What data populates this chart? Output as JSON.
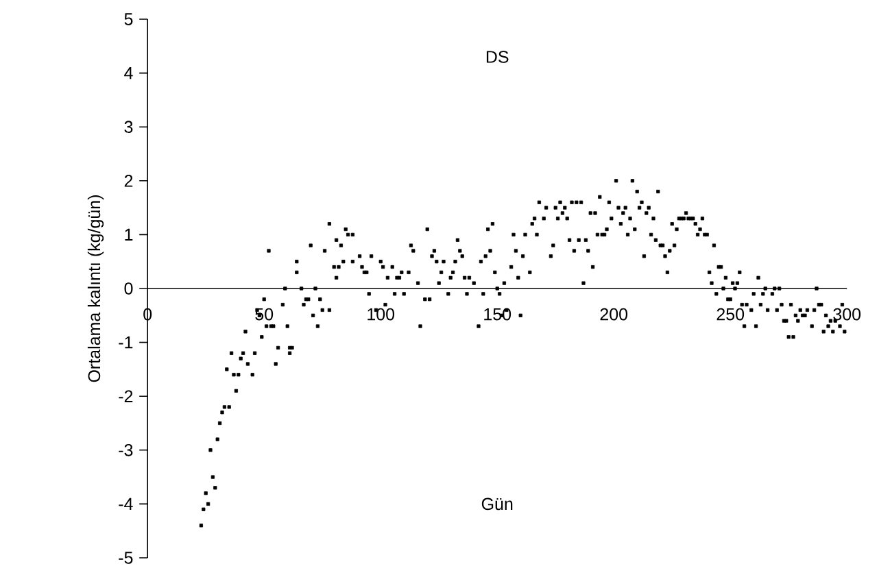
{
  "chart_data": {
    "type": "scatter",
    "title": "DS",
    "xlabel": "Gün",
    "ylabel": "Ortalama kalıntı (kg/gün)",
    "color": "#000000",
    "marker": "square",
    "xlim": [
      0,
      300
    ],
    "ylim": [
      -5,
      5
    ],
    "xticks": [
      0,
      50,
      100,
      150,
      200,
      250,
      300
    ],
    "yticks": [
      -5,
      -4,
      -3,
      -2,
      -1,
      0,
      1,
      2,
      3,
      4,
      5
    ],
    "x": [
      23,
      24,
      25,
      26,
      27,
      28,
      29,
      30,
      31,
      32,
      33,
      35,
      34,
      36,
      37,
      39,
      38,
      40,
      41,
      42,
      43,
      45,
      46,
      47,
      48,
      50,
      49,
      51,
      52,
      53,
      54,
      55,
      56,
      58,
      59,
      60,
      61,
      61,
      62,
      64,
      64,
      66,
      67,
      68,
      69,
      70,
      71,
      72,
      73,
      74,
      75,
      76,
      78,
      78,
      80,
      81,
      81,
      82,
      83,
      84,
      85,
      86,
      88,
      88,
      91,
      92,
      93,
      94,
      95,
      96,
      98,
      100,
      101,
      102,
      103,
      105,
      106,
      107,
      108,
      109,
      110,
      112,
      113,
      114,
      116,
      117,
      119,
      120,
      121,
      122,
      123,
      124,
      125,
      126,
      127,
      129,
      130,
      131,
      132,
      133,
      134,
      135,
      136,
      137,
      138,
      140,
      142,
      143,
      144,
      145,
      146,
      147,
      148,
      149,
      150,
      151,
      152,
      153,
      154,
      156,
      157,
      158,
      159,
      160,
      161,
      162,
      164,
      165,
      166,
      167,
      168,
      170,
      171,
      173,
      174,
      175,
      176,
      177,
      178,
      179,
      180,
      181,
      182,
      183,
      184,
      185,
      186,
      187,
      188,
      189,
      190,
      191,
      192,
      193,
      194,
      195,
      196,
      197,
      198,
      199,
      201,
      202,
      203,
      204,
      205,
      206,
      207,
      208,
      209,
      210,
      211,
      212,
      213,
      214,
      215,
      216,
      217,
      218,
      219,
      220,
      221,
      222,
      223,
      224,
      225,
      226,
      227,
      228,
      229,
      230,
      231,
      232,
      233,
      234,
      235,
      236,
      237,
      238,
      239,
      240,
      241,
      242,
      243,
      244,
      245,
      246,
      247,
      248,
      249,
      250,
      251,
      252,
      253,
      254,
      255,
      256,
      257,
      259,
      260,
      261,
      262,
      263,
      264,
      265,
      266,
      268,
      269,
      270,
      271,
      272,
      273,
      274,
      275,
      276,
      277,
      278,
      279,
      280,
      281,
      282,
      283,
      285,
      286,
      287,
      288,
      289,
      290,
      291,
      292,
      293,
      294,
      295,
      297,
      298,
      299
    ],
    "values": [
      -4.4,
      -4.1,
      -3.8,
      -4.0,
      -3.0,
      -3.5,
      -3.7,
      -2.8,
      -2.5,
      -2.3,
      -2.2,
      -2.2,
      -1.5,
      -1.2,
      -1.6,
      -1.6,
      -1.9,
      -1.3,
      -1.2,
      -0.8,
      -1.4,
      -1.6,
      -1.2,
      -0.4,
      -0.5,
      -0.2,
      -0.9,
      -0.7,
      0.7,
      -0.7,
      -0.7,
      -1.4,
      -1.1,
      -0.3,
      0.0,
      -0.7,
      -1.1,
      -1.2,
      -1.1,
      0.5,
      0.3,
      0.0,
      -0.3,
      -0.2,
      -0.2,
      0.8,
      -0.5,
      0.0,
      -0.7,
      -0.2,
      -0.4,
      0.7,
      1.2,
      -0.4,
      0.4,
      0.9,
      0.2,
      0.4,
      0.8,
      0.5,
      1.1,
      1.0,
      1.0,
      0.5,
      0.6,
      0.4,
      0.3,
      0.3,
      -0.1,
      0.6,
      -0.4,
      0.5,
      0.4,
      -0.3,
      0.2,
      0.4,
      -0.1,
      0.2,
      0.2,
      0.3,
      -0.1,
      0.3,
      0.8,
      0.7,
      0.1,
      -0.7,
      -0.2,
      1.1,
      -0.2,
      0.6,
      0.7,
      0.5,
      0.1,
      0.3,
      0.5,
      -0.1,
      0.2,
      0.3,
      0.5,
      0.9,
      0.7,
      0.6,
      0.2,
      -0.1,
      0.2,
      0.1,
      -0.7,
      0.5,
      -0.1,
      0.6,
      1.1,
      0.7,
      1.2,
      0.3,
      0.0,
      -0.1,
      -0.5,
      0.1,
      -0.4,
      0.4,
      1.0,
      0.7,
      0.2,
      -0.5,
      0.6,
      1.0,
      0.3,
      1.2,
      1.3,
      1.0,
      1.6,
      1.3,
      1.5,
      0.6,
      0.8,
      1.5,
      1.3,
      1.6,
      1.4,
      1.5,
      1.3,
      0.9,
      1.6,
      0.7,
      1.6,
      0.9,
      1.6,
      0.1,
      0.9,
      0.7,
      1.4,
      0.4,
      1.4,
      1.0,
      1.7,
      1.0,
      1.0,
      1.1,
      1.6,
      1.3,
      2.0,
      1.5,
      1.2,
      1.4,
      1.5,
      1.0,
      1.3,
      2.0,
      1.1,
      1.8,
      1.5,
      1.6,
      0.6,
      1.4,
      1.5,
      1.0,
      1.3,
      0.9,
      1.8,
      0.8,
      0.8,
      0.6,
      0.3,
      0.7,
      1.2,
      0.8,
      1.1,
      1.3,
      1.3,
      1.3,
      1.4,
      1.3,
      1.3,
      1.3,
      1.2,
      1.0,
      1.1,
      1.3,
      1.0,
      1.0,
      0.3,
      0.1,
      0.8,
      -0.1,
      0.4,
      0.4,
      0.0,
      0.2,
      -0.2,
      -0.2,
      0.1,
      0.0,
      0.1,
      0.3,
      -0.3,
      -0.7,
      -0.3,
      -0.4,
      -0.1,
      -0.7,
      0.2,
      -0.3,
      -0.1,
      0.0,
      -0.4,
      -0.1,
      0.0,
      -0.4,
      0.0,
      -0.3,
      -0.6,
      -0.6,
      -0.9,
      -0.3,
      -0.9,
      -0.5,
      -0.6,
      -0.4,
      -0.5,
      -0.5,
      -0.4,
      -0.7,
      -0.4,
      0.0,
      -0.3,
      -0.3,
      -0.8,
      -0.5,
      -0.7,
      -0.6,
      -0.8,
      -0.6,
      -0.7,
      -0.3,
      -0.8
    ]
  }
}
